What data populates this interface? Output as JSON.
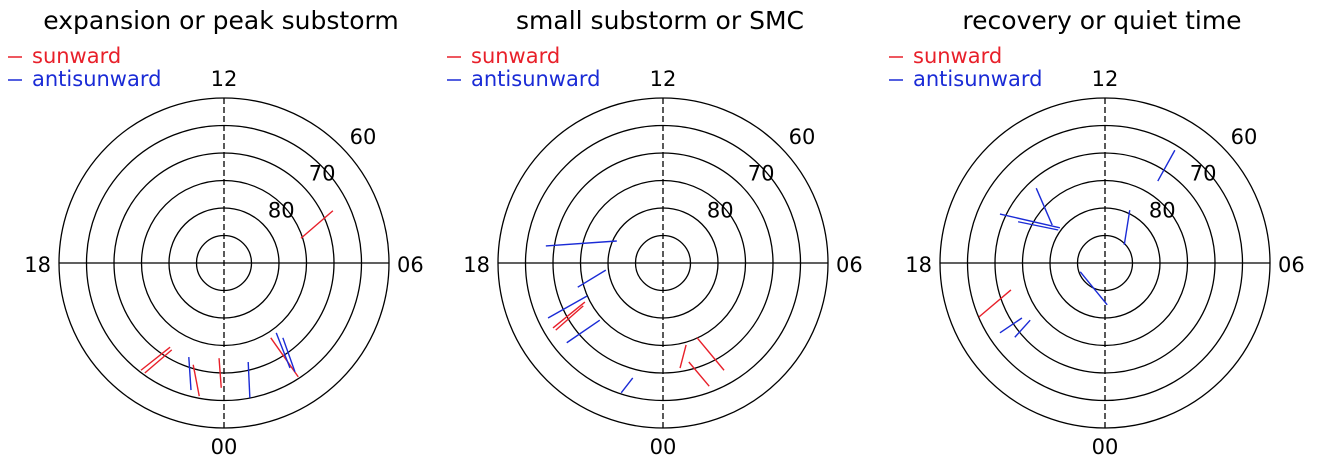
{
  "chart_data": [
    {
      "type": "polar",
      "title": "expansion or peak substorm",
      "rlim": [
        90,
        60
      ],
      "rgrid": [
        85,
        80,
        75,
        70,
        65
      ],
      "rticks": [
        80,
        70,
        60
      ],
      "hour_labels": [
        "12",
        "06",
        "00",
        "18"
      ],
      "series": [
        {
          "name": "sunward",
          "color": "#e8202a",
          "segments": [
            [
              14.0,
              4.5,
              19.8,
              9.5
            ],
            [
              -15.1,
              -19.5,
              -9.8,
              -15.3
            ],
            [
              -14.4,
              -20.0,
              -9.5,
              -15.8
            ],
            [
              -5.6,
              -18.5,
              -4.5,
              -24.2
            ],
            [
              -0.9,
              -17.3,
              -0.5,
              -22.7
            ],
            [
              8.5,
              -13.6,
              13.5,
              -20.7
            ]
          ]
        },
        {
          "name": "antisunward",
          "color": "#1a2bd6",
          "segments": [
            [
              -6.4,
              -17.1,
              -6.0,
              -23.1
            ],
            [
              4.4,
              -18.0,
              4.7,
              -24.5
            ],
            [
              9.5,
              -12.7,
              12.0,
              -19.1
            ],
            [
              10.7,
              -13.6,
              12.9,
              -19.8
            ]
          ]
        }
      ]
    },
    {
      "type": "polar",
      "title": "small substorm or SMC",
      "rlim": [
        90,
        60
      ],
      "rgrid": [
        85,
        80,
        75,
        70,
        65
      ],
      "rticks": [
        80,
        70,
        60
      ],
      "hour_labels": [
        "12",
        "06",
        "00",
        "18"
      ],
      "series": [
        {
          "name": "sunward",
          "color": "#e8202a",
          "segments": [
            [
              -20.0,
              -11.8,
              -14.2,
              -7.1
            ],
            [
              -19.5,
              -12.2,
              -14.5,
              -7.8
            ],
            [
              3.1,
              -19.1,
              4.2,
              -14.9
            ],
            [
              6.2,
              -13.6,
              11.1,
              -19.5
            ],
            [
              4.7,
              -18.0,
              8.4,
              -22.4
            ]
          ]
        },
        {
          "name": "antisunward",
          "color": "#1a2bd6",
          "segments": [
            [
              -21.3,
              3.1,
              -8.4,
              4.0
            ],
            [
              -15.5,
              -4.4,
              -10.4,
              -1.3
            ],
            [
              -20.9,
              -10.0,
              -13.8,
              -6.0
            ],
            [
              -17.5,
              -14.5,
              -11.5,
              -10.4
            ],
            [
              -7.6,
              -23.6,
              -5.5,
              -20.9
            ]
          ]
        }
      ]
    },
    {
      "type": "polar",
      "title": "recovery or quiet time",
      "rlim": [
        90,
        60
      ],
      "rgrid": [
        85,
        80,
        75,
        70,
        65
      ],
      "rticks": [
        80,
        70,
        60
      ],
      "hour_labels": [
        "12",
        "06",
        "00",
        "18"
      ],
      "series": [
        {
          "name": "sunward",
          "color": "#e8202a",
          "segments": [
            [
              -22.9,
              -9.8,
              -17.1,
              -4.9
            ]
          ]
        },
        {
          "name": "antisunward",
          "color": "#1a2bd6",
          "segments": [
            [
              9.6,
              14.9,
              12.7,
              20.5
            ],
            [
              -12.5,
              13.6,
              -9.6,
              6.9
            ],
            [
              -19.1,
              8.9,
              -8.2,
              6.4
            ],
            [
              -15.8,
              7.5,
              -8.5,
              6.0
            ],
            [
              3.5,
              3.3,
              4.5,
              9.6
            ],
            [
              -4.5,
              -1.6,
              0.4,
              -7.6
            ],
            [
              -19.1,
              -12.7,
              -15.1,
              -10.0
            ],
            [
              -16.4,
              -13.5,
              -13.6,
              -10.4
            ]
          ]
        }
      ]
    }
  ]
}
